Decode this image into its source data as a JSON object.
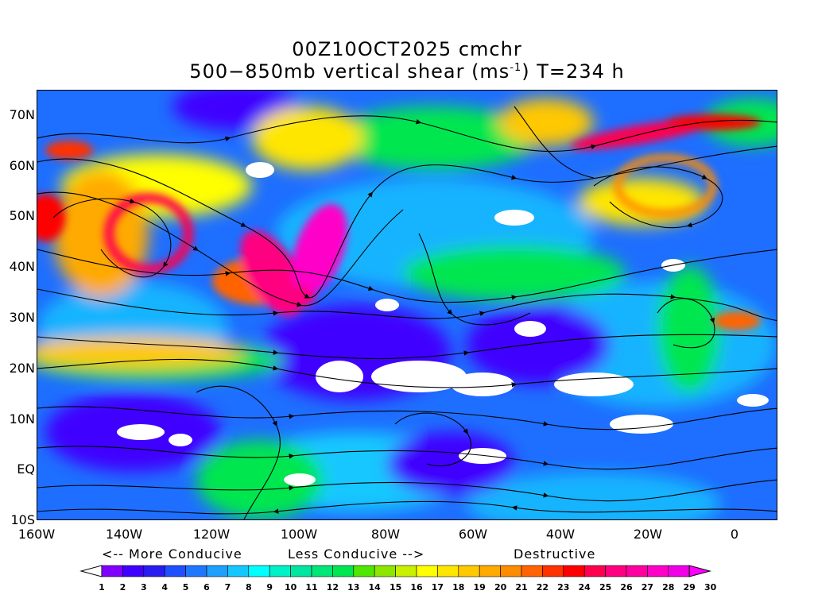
{
  "title": {
    "line1": "00Z10OCT2025 cmchr",
    "line2_prefix": "500−850mb vertical shear (ms",
    "line2_sup": "-1",
    "line2_suffix": ") T=234 h"
  },
  "map": {
    "lat_labels": [
      "70N",
      "60N",
      "50N",
      "40N",
      "30N",
      "20N",
      "10N",
      "EQ",
      "10S"
    ],
    "lon_labels": [
      "160W",
      "140W",
      "120W",
      "100W",
      "80W",
      "60W",
      "40W",
      "20W",
      "0"
    ],
    "lon_range": [
      -160,
      10
    ],
    "lat_range": [
      -10,
      75
    ]
  },
  "legend": {
    "more": "<-- More Conducive",
    "less": "Less Conducive -->",
    "destructive": "Destructive",
    "values": [
      "1",
      "2",
      "3",
      "4",
      "5",
      "6",
      "7",
      "8",
      "9",
      "10",
      "11",
      "12",
      "13",
      "14",
      "15",
      "16",
      "17",
      "18",
      "19",
      "20",
      "21",
      "22",
      "23",
      "24",
      "25",
      "26",
      "27",
      "28",
      "29",
      "30"
    ],
    "colors": [
      "#ffffff",
      "#7f00ff",
      "#4000ff",
      "#2a1cf0",
      "#1e50ff",
      "#1e78ff",
      "#1ea0ff",
      "#14c8ff",
      "#00ffff",
      "#00f0c8",
      "#00e6a0",
      "#00e678",
      "#00e650",
      "#50e600",
      "#8ce600",
      "#c8f000",
      "#ffff00",
      "#ffe600",
      "#ffc800",
      "#ffaa00",
      "#ff8c00",
      "#ff6400",
      "#ff3200",
      "#ff0000",
      "#ff0050",
      "#ff0080",
      "#ff00a0",
      "#ff00c8",
      "#f000e6",
      "#ff00ff"
    ]
  }
}
